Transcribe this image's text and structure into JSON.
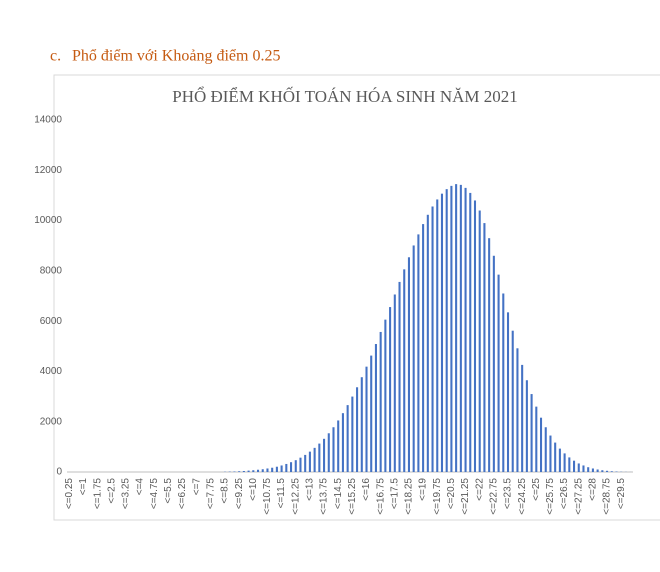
{
  "heading": {
    "marker": "c.",
    "text": "Phổ điểm với Khoảng điểm 0.25"
  },
  "chart_data": {
    "type": "bar",
    "title": "PHỔ ĐIỂM KHỐI TOÁN HÓA SINH NĂM 2021",
    "color": "#4472c4",
    "grid": false,
    "ylim": [
      0,
      14000
    ],
    "yticks": [
      0,
      2000,
      4000,
      6000,
      8000,
      10000,
      12000,
      14000
    ],
    "categories": [
      "<=0.25",
      null,
      null,
      "<=1",
      null,
      null,
      "<=1.75",
      null,
      null,
      "<=2.5",
      null,
      null,
      "<=3.25",
      null,
      null,
      "<=4",
      null,
      null,
      "<=4.75",
      null,
      null,
      "<=5.5",
      null,
      null,
      "<=6.25",
      null,
      null,
      "<=7",
      null,
      null,
      "<=7.75",
      null,
      null,
      "<=8.5",
      null,
      null,
      "<=9.25",
      null,
      null,
      "<=10",
      null,
      null,
      "<=10.75",
      null,
      null,
      "<=11.5",
      null,
      null,
      "<=12.25",
      null,
      null,
      "<=13",
      null,
      null,
      "<=13.75",
      null,
      null,
      "<=14.5",
      null,
      null,
      "<=15.25",
      null,
      null,
      "<=16",
      null,
      null,
      "<=16.75",
      null,
      null,
      "<=17.5",
      null,
      null,
      "<=18.25",
      null,
      null,
      "<=19",
      null,
      null,
      "<=19.75",
      null,
      null,
      "<=20.5",
      null,
      null,
      "<=21.25",
      null,
      null,
      "<=22",
      null,
      null,
      "<=22.75",
      null,
      null,
      "<=23.5",
      null,
      null,
      "<=24.25",
      null,
      null,
      "<=25",
      null,
      null,
      "<=25.75",
      null,
      null,
      "<=26.5",
      null,
      null,
      "<=27.25",
      null,
      null,
      "<=28",
      null,
      null,
      "<=28.75",
      null,
      null,
      "<=29.5",
      null,
      null
    ],
    "values": [
      0,
      0,
      0,
      0,
      0,
      0,
      0,
      0,
      0,
      0,
      0,
      0,
      0,
      0,
      0,
      0,
      0,
      0,
      0,
      0,
      0,
      0,
      0,
      0,
      0,
      0,
      0,
      0,
      0,
      0,
      0,
      0,
      0,
      10,
      15,
      20,
      30,
      40,
      55,
      70,
      90,
      110,
      140,
      170,
      210,
      260,
      320,
      390,
      470,
      570,
      680,
      810,
      960,
      1130,
      1320,
      1540,
      1780,
      2050,
      2340,
      2660,
      3000,
      3370,
      3770,
      4190,
      4630,
      5090,
      5570,
      6060,
      6560,
      7060,
      7560,
      8060,
      8540,
      9010,
      9450,
      9860,
      10230,
      10560,
      10840,
      11070,
      11250,
      11380,
      11450,
      11420,
      11300,
      11100,
      10800,
      10400,
      9900,
      9300,
      8600,
      7850,
      7100,
      6350,
      5620,
      4920,
      4260,
      3650,
      3100,
      2600,
      2160,
      1780,
      1450,
      1170,
      930,
      740,
      580,
      450,
      340,
      260,
      190,
      140,
      100,
      70,
      48,
      30,
      18,
      10,
      5,
      2
    ]
  }
}
